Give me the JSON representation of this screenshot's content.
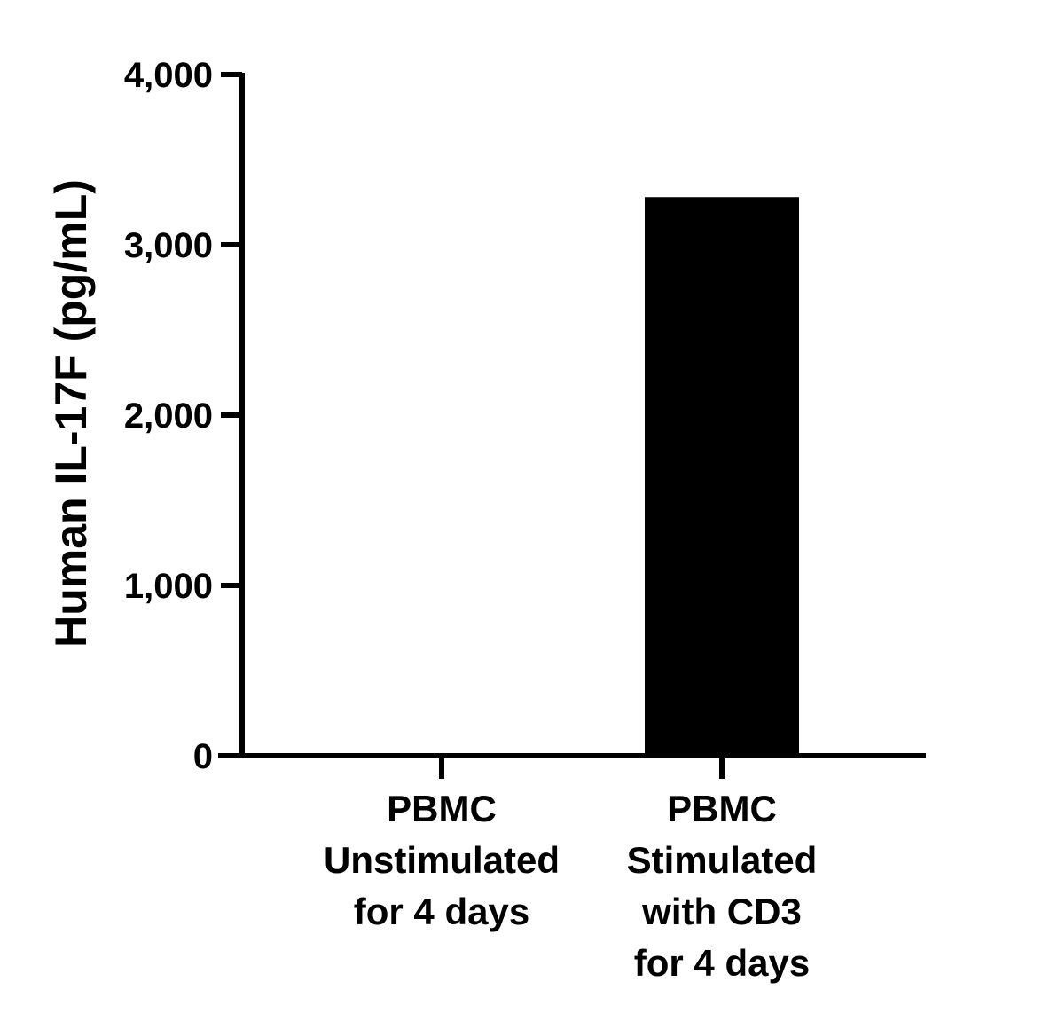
{
  "chart_data": {
    "type": "bar",
    "ylabel": "Human IL-17F (pg/mL)",
    "xlabel": "",
    "categories": [
      [
        "PBMC",
        "Unstimulated",
        "for 4 days"
      ],
      [
        "PBMC",
        "Stimulated",
        "with CD3",
        "for 4 days"
      ]
    ],
    "values": [
      0,
      3280
    ],
    "ylim": [
      0,
      4000
    ],
    "yticks": [
      0,
      1000,
      2000,
      3000,
      4000
    ],
    "ytick_labels": [
      "0",
      "1,000",
      "2,000",
      "3,000",
      "4,000"
    ],
    "grid": false,
    "legend": "none",
    "bar_color": "#000000",
    "axis_color": "#000000"
  }
}
